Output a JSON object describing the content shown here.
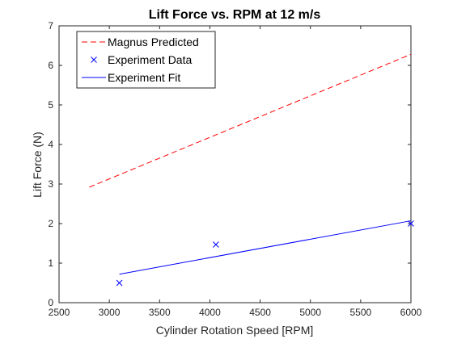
{
  "chart_data": {
    "type": "line",
    "title": "Lift Force vs. RPM at 12 m/s",
    "xlabel": "Cylinder Rotation Speed [RPM]",
    "ylabel": "Lift Force (N)",
    "xlim": [
      2500,
      6000
    ],
    "ylim": [
      0,
      7
    ],
    "xticks": [
      2500,
      3000,
      3500,
      4000,
      4500,
      5000,
      5500,
      6000
    ],
    "yticks": [
      0,
      1,
      2,
      3,
      4,
      5,
      6,
      7
    ],
    "grid": false,
    "legend_position": "top-left",
    "series": [
      {
        "name": "Magnus Predicted",
        "style": "dashed-line",
        "color": "#ff0000",
        "x": [
          2800,
          6000
        ],
        "y": [
          2.92,
          6.28
        ]
      },
      {
        "name": "Experiment Data",
        "style": "x-marker",
        "color": "#0000ff",
        "x": [
          3100,
          4060,
          6000
        ],
        "y": [
          0.5,
          1.47,
          2.0
        ]
      },
      {
        "name": "Experiment Fit",
        "style": "solid-line",
        "color": "#0000ff",
        "x": [
          3100,
          6000
        ],
        "y": [
          0.72,
          2.07
        ]
      }
    ]
  }
}
